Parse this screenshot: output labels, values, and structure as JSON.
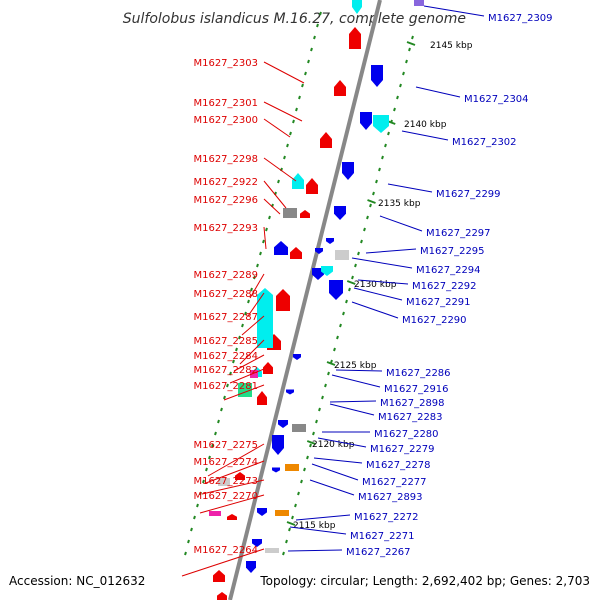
{
  "title": "Sulfolobus islandicus M.16.27, complete genome",
  "footer": {
    "accession": "Accession: NC_012632",
    "summary": "Topology: circular; Length: 2,692,402 bp; Genes: 2,703"
  },
  "colors": {
    "label_left": "#dd0000",
    "label_right": "#0000bb",
    "backbone": "#888888",
    "tick": "#228822",
    "gene_red": "#ee0000",
    "gene_blue": "#0000ee",
    "gene_cyan": "#00eeee",
    "gene_grey": "#888888",
    "gene_lightgrey": "#cccccc",
    "gene_orange": "#ee8800",
    "gene_green": "#22dd88",
    "gene_magenta": "#ee22aa",
    "gene_violet": "#8866dd"
  },
  "scale_labels": [
    "2145 kbp",
    "2140 kbp",
    "2135 kbp",
    "2130 kbp",
    "2125 kbp",
    "2120 kbp",
    "2115 kbp"
  ],
  "left_genes": [
    "M1627_2303",
    "M1627_2301",
    "M1627_2300",
    "M1627_2298",
    "M1627_2922",
    "M1627_2296",
    "M1627_2293",
    "M1627_2289",
    "M1627_2288",
    "M1627_2287",
    "M1627_2285",
    "M1627_2284",
    "M1627_2282",
    "M1627_2281",
    "M1627_2275",
    "M1627_2274",
    "M1627_2273",
    "M1627_2270",
    "M1627_2264"
  ],
  "right_genes": [
    "M1627_2309",
    "M1627_2304",
    "M1627_2302",
    "M1627_2299",
    "M1627_2297",
    "M1627_2295",
    "M1627_2294",
    "M1627_2292",
    "M1627_2291",
    "M1627_2290",
    "M1627_2286",
    "M1627_2916",
    "M1627_2898",
    "M1627_2283",
    "M1627_2280",
    "M1627_2279",
    "M1627_2278",
    "M1627_2277",
    "M1627_2893",
    "M1627_2272",
    "M1627_2271",
    "M1627_2267"
  ]
}
